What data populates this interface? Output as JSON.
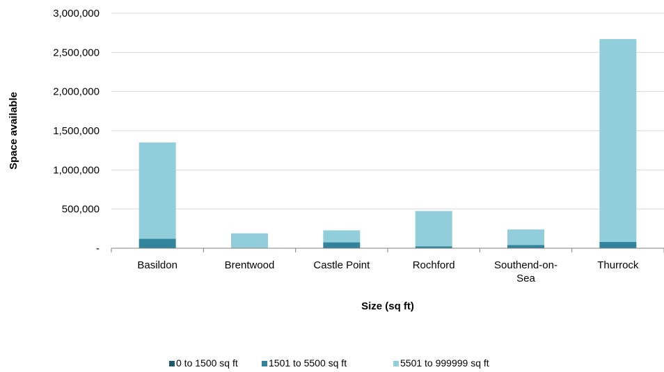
{
  "chart_data": {
    "type": "bar",
    "stacked": true,
    "categories": [
      [
        "Basildon"
      ],
      [
        "Brentwood"
      ],
      [
        "Castle Point"
      ],
      [
        "Rochford"
      ],
      [
        "Southend-on-",
        "Sea"
      ],
      [
        "Thurrock"
      ]
    ],
    "series": [
      {
        "name": "0 to 1500 sq ft",
        "color": "#1f5a6b",
        "values": [
          0,
          0,
          0,
          0,
          0,
          0
        ]
      },
      {
        "name": "1501 to 5500 sq ft",
        "color": "#31849b",
        "values": [
          120000,
          3000,
          75000,
          25000,
          40000,
          80000
        ]
      },
      {
        "name": "5501 to 999999 sq ft",
        "color": "#92cddc",
        "values": [
          1230000,
          187000,
          153000,
          450000,
          200000,
          2590000
        ]
      }
    ],
    "xlabel": "Size (sq ft)",
    "ylabel": "Space available",
    "ylim": [
      0,
      3000000
    ],
    "yticks": [
      "-",
      "500,000",
      "1,000,000",
      "1,500,000",
      "2,000,000",
      "2,500,000",
      "3,000,000"
    ],
    "grid": true,
    "legend": "bottom"
  }
}
